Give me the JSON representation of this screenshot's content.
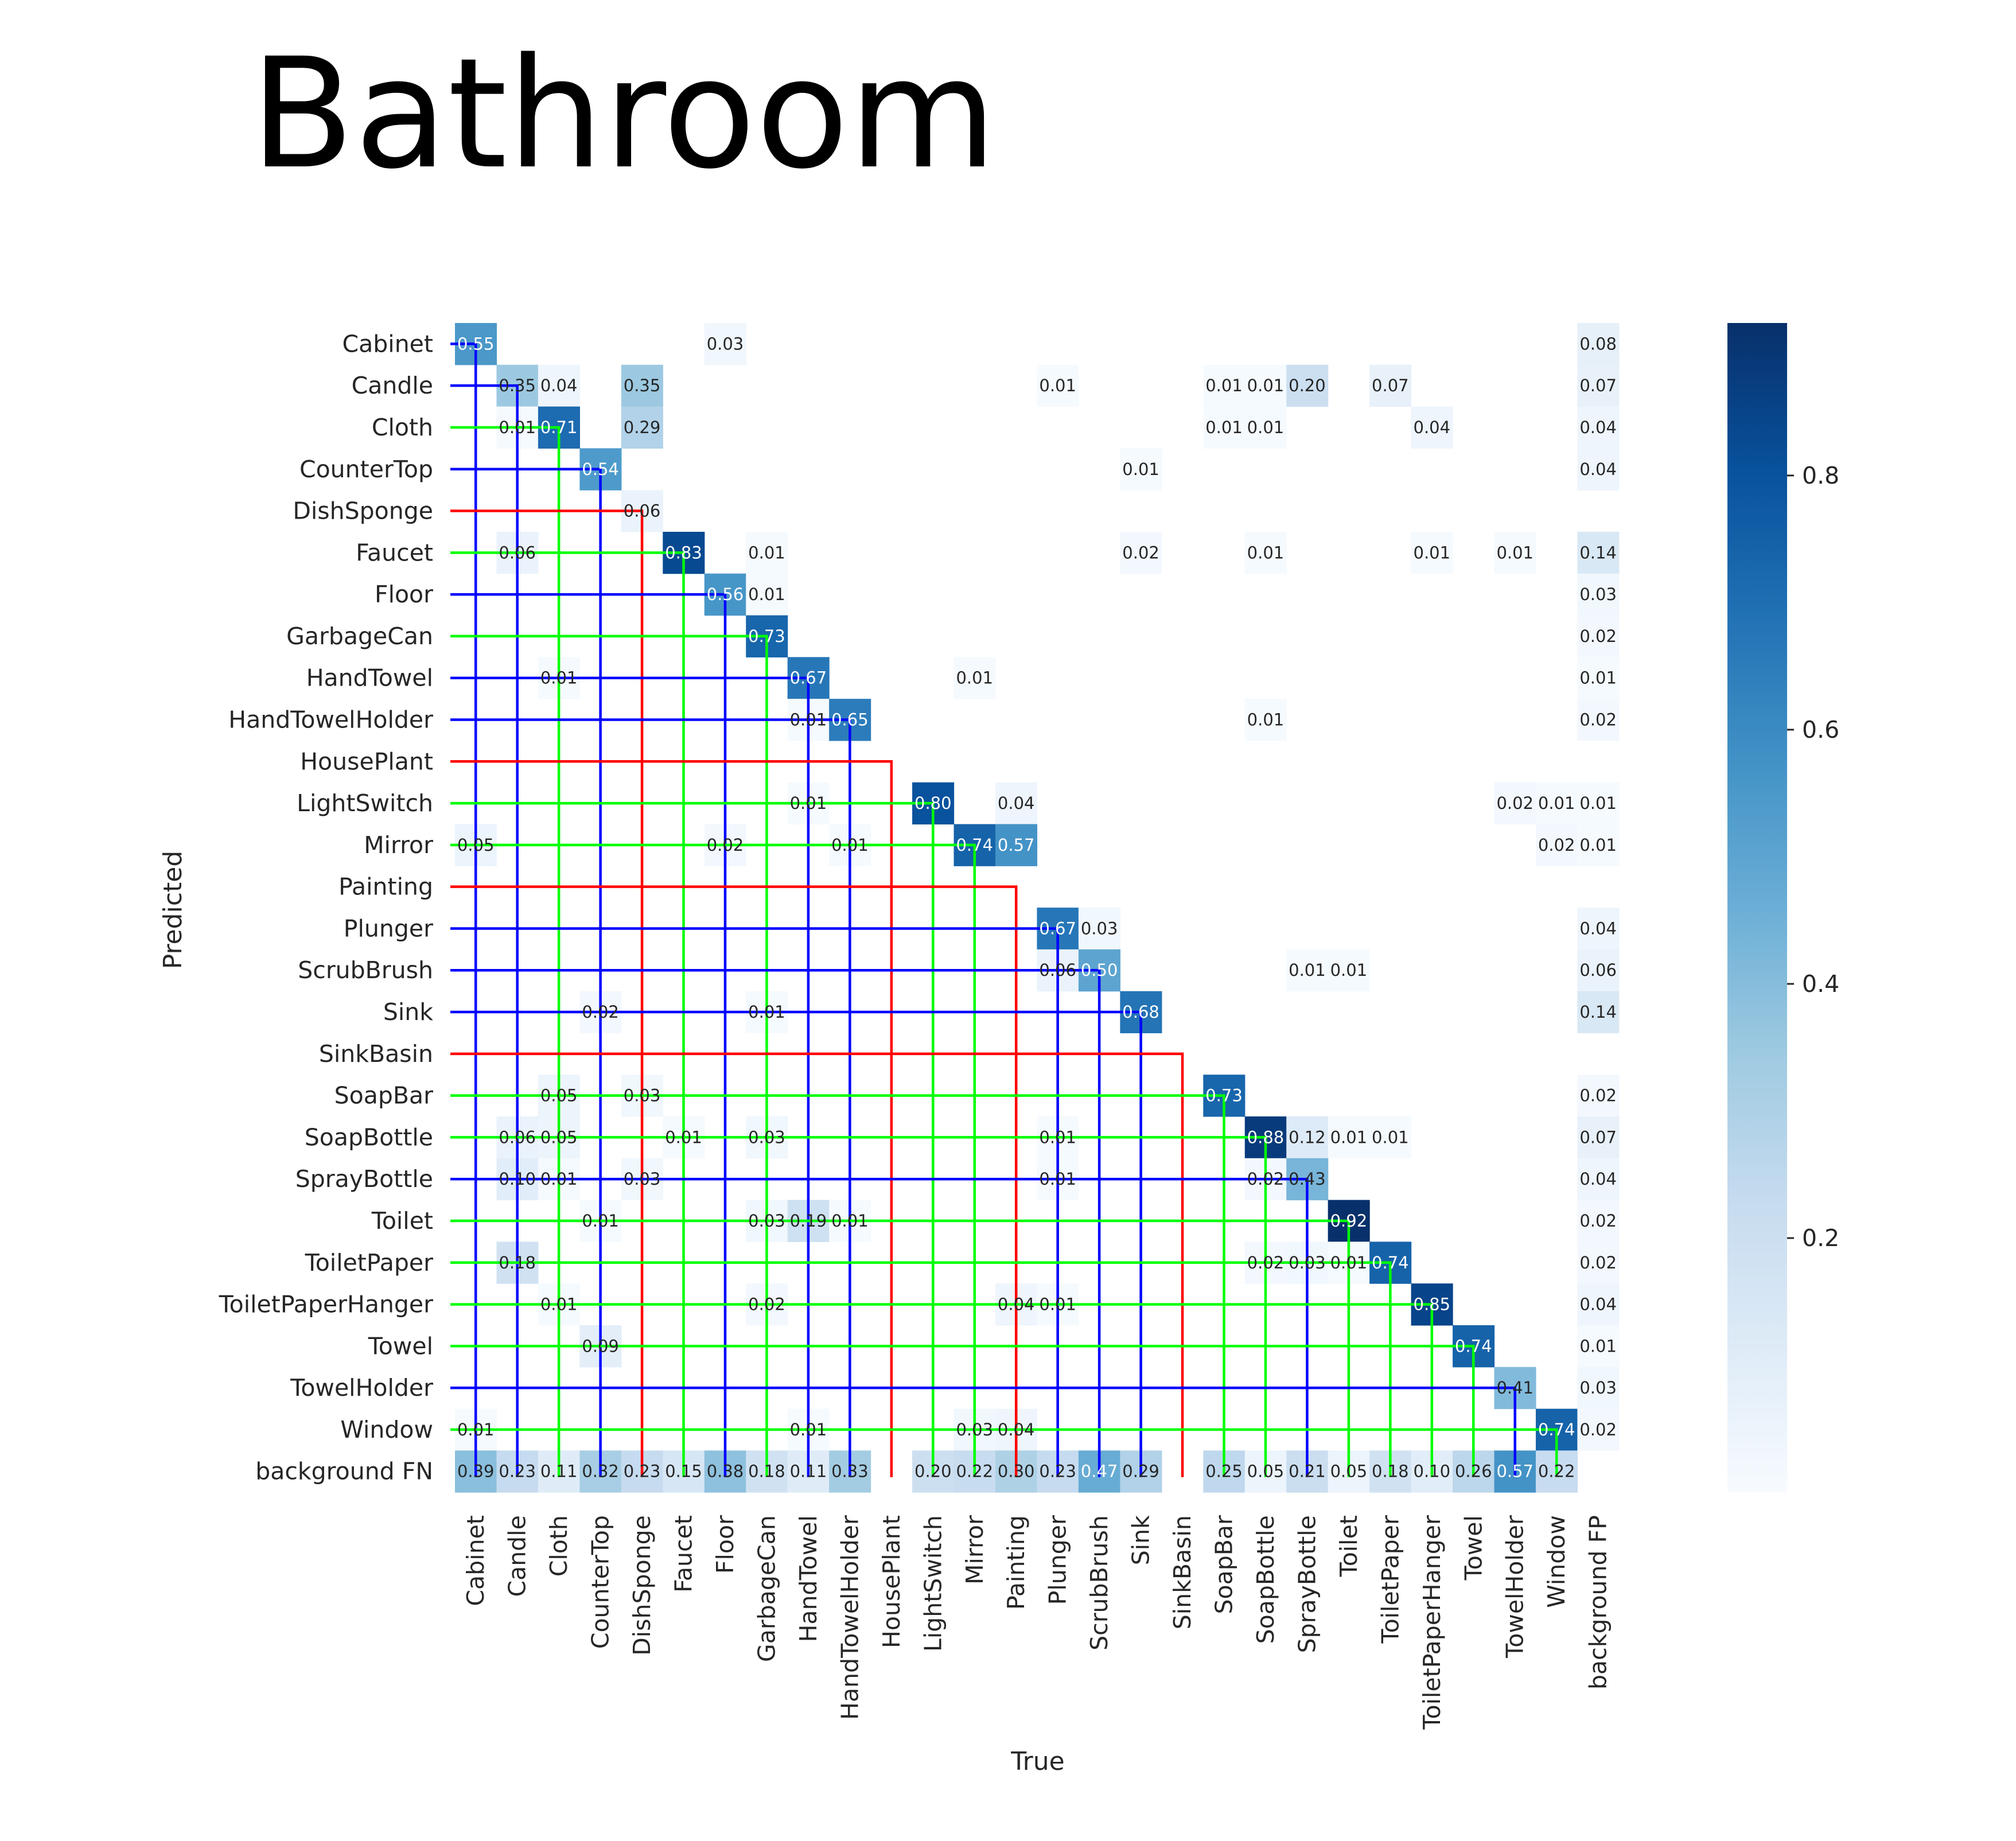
{
  "chart_data": {
    "type": "heatmap",
    "title": "Bathroom",
    "xlabel": "True",
    "ylabel": "Predicted",
    "colormap": "Blues",
    "value_range": [
      0.0,
      0.92
    ],
    "colorbar_ticks": [
      "0.2",
      "0.4",
      "0.6",
      "0.8"
    ],
    "colorbar_values": [
      0.2,
      0.4,
      0.6,
      0.8
    ],
    "row_labels": [
      "Cabinet",
      "Candle",
      "Cloth",
      "CounterTop",
      "DishSponge",
      "Faucet",
      "Floor",
      "GarbageCan",
      "HandTowel",
      "HandTowelHolder",
      "HousePlant",
      "LightSwitch",
      "Mirror",
      "Painting",
      "Plunger",
      "ScrubBrush",
      "Sink",
      "SinkBasin",
      "SoapBar",
      "SoapBottle",
      "SprayBottle",
      "Toilet",
      "ToiletPaper",
      "ToiletPaperHanger",
      "Towel",
      "TowelHolder",
      "Window",
      "background FN"
    ],
    "col_labels": [
      "Cabinet",
      "Candle",
      "Cloth",
      "CounterTop",
      "DishSponge",
      "Faucet",
      "Floor",
      "GarbageCan",
      "HandTowel",
      "HandTowelHolder",
      "HousePlant",
      "LightSwitch",
      "Mirror",
      "Painting",
      "Plunger",
      "ScrubBrush",
      "Sink",
      "SinkBasin",
      "SoapBar",
      "SoapBottle",
      "SprayBottle",
      "Toilet",
      "ToiletPaper",
      "ToiletPaperHanger",
      "Towel",
      "TowelHolder",
      "Window",
      "background FP"
    ],
    "cells": [
      {
        "row": 0,
        "col": 0,
        "value": 0.55,
        "label": "0.55"
      },
      {
        "row": 0,
        "col": 6,
        "value": 0.03,
        "label": "0.03"
      },
      {
        "row": 0,
        "col": 27,
        "value": 0.08,
        "label": "0.08"
      },
      {
        "row": 1,
        "col": 1,
        "value": 0.35,
        "label": "0.35"
      },
      {
        "row": 1,
        "col": 2,
        "value": 0.04,
        "label": "0.04"
      },
      {
        "row": 1,
        "col": 4,
        "value": 0.35,
        "label": "0.35"
      },
      {
        "row": 1,
        "col": 14,
        "value": 0.01,
        "label": "0.01"
      },
      {
        "row": 1,
        "col": 18,
        "value": 0.01,
        "label": "0.01"
      },
      {
        "row": 1,
        "col": 19,
        "value": 0.01,
        "label": "0.01"
      },
      {
        "row": 1,
        "col": 20,
        "value": 0.2,
        "label": "0.20"
      },
      {
        "row": 1,
        "col": 22,
        "value": 0.07,
        "label": "0.07"
      },
      {
        "row": 1,
        "col": 27,
        "value": 0.07,
        "label": "0.07"
      },
      {
        "row": 2,
        "col": 1,
        "value": 0.01,
        "label": "0.01"
      },
      {
        "row": 2,
        "col": 2,
        "value": 0.71,
        "label": "0.71"
      },
      {
        "row": 2,
        "col": 4,
        "value": 0.29,
        "label": "0.29"
      },
      {
        "row": 2,
        "col": 18,
        "value": 0.01,
        "label": "0.01"
      },
      {
        "row": 2,
        "col": 19,
        "value": 0.01,
        "label": "0.01"
      },
      {
        "row": 2,
        "col": 23,
        "value": 0.04,
        "label": "0.04"
      },
      {
        "row": 2,
        "col": 27,
        "value": 0.04,
        "label": "0.04"
      },
      {
        "row": 3,
        "col": 3,
        "value": 0.54,
        "label": "0.54"
      },
      {
        "row": 3,
        "col": 16,
        "value": 0.01,
        "label": "0.01"
      },
      {
        "row": 3,
        "col": 27,
        "value": 0.04,
        "label": "0.04"
      },
      {
        "row": 4,
        "col": 4,
        "value": 0.06,
        "label": "0.06"
      },
      {
        "row": 5,
        "col": 1,
        "value": 0.06,
        "label": "0.06"
      },
      {
        "row": 5,
        "col": 5,
        "value": 0.83,
        "label": "0.83"
      },
      {
        "row": 5,
        "col": 7,
        "value": 0.01,
        "label": "0.01"
      },
      {
        "row": 5,
        "col": 16,
        "value": 0.02,
        "label": "0.02"
      },
      {
        "row": 5,
        "col": 19,
        "value": 0.01,
        "label": "0.01"
      },
      {
        "row": 5,
        "col": 23,
        "value": 0.01,
        "label": "0.01"
      },
      {
        "row": 5,
        "col": 25,
        "value": 0.01,
        "label": "0.01"
      },
      {
        "row": 5,
        "col": 27,
        "value": 0.14,
        "label": "0.14"
      },
      {
        "row": 6,
        "col": 6,
        "value": 0.56,
        "label": "0.56"
      },
      {
        "row": 6,
        "col": 7,
        "value": 0.01,
        "label": "0.01"
      },
      {
        "row": 6,
        "col": 27,
        "value": 0.03,
        "label": "0.03"
      },
      {
        "row": 7,
        "col": 7,
        "value": 0.73,
        "label": "0.73"
      },
      {
        "row": 7,
        "col": 27,
        "value": 0.02,
        "label": "0.02"
      },
      {
        "row": 8,
        "col": 2,
        "value": 0.01,
        "label": "0.01"
      },
      {
        "row": 8,
        "col": 8,
        "value": 0.67,
        "label": "0.67"
      },
      {
        "row": 8,
        "col": 12,
        "value": 0.01,
        "label": "0.01"
      },
      {
        "row": 8,
        "col": 27,
        "value": 0.01,
        "label": "0.01"
      },
      {
        "row": 9,
        "col": 8,
        "value": 0.01,
        "label": "0.01"
      },
      {
        "row": 9,
        "col": 9,
        "value": 0.65,
        "label": "0.65"
      },
      {
        "row": 9,
        "col": 19,
        "value": 0.01,
        "label": "0.01"
      },
      {
        "row": 9,
        "col": 27,
        "value": 0.02,
        "label": "0.02"
      },
      {
        "row": 11,
        "col": 8,
        "value": 0.01,
        "label": "0.01"
      },
      {
        "row": 11,
        "col": 11,
        "value": 0.8,
        "label": "0.80"
      },
      {
        "row": 11,
        "col": 13,
        "value": 0.04,
        "label": "0.04"
      },
      {
        "row": 11,
        "col": 25,
        "value": 0.02,
        "label": "0.02"
      },
      {
        "row": 11,
        "col": 26,
        "value": 0.01,
        "label": "0.01"
      },
      {
        "row": 11,
        "col": 27,
        "value": 0.01,
        "label": "0.01"
      },
      {
        "row": 12,
        "col": 0,
        "value": 0.05,
        "label": "0.05"
      },
      {
        "row": 12,
        "col": 6,
        "value": 0.02,
        "label": "0.02"
      },
      {
        "row": 12,
        "col": 9,
        "value": 0.01,
        "label": "0.01"
      },
      {
        "row": 12,
        "col": 12,
        "value": 0.74,
        "label": "0.74"
      },
      {
        "row": 12,
        "col": 13,
        "value": 0.57,
        "label": "0.57"
      },
      {
        "row": 12,
        "col": 26,
        "value": 0.02,
        "label": "0.02"
      },
      {
        "row": 12,
        "col": 27,
        "value": 0.01,
        "label": "0.01"
      },
      {
        "row": 14,
        "col": 14,
        "value": 0.67,
        "label": "0.67"
      },
      {
        "row": 14,
        "col": 15,
        "value": 0.03,
        "label": "0.03"
      },
      {
        "row": 14,
        "col": 27,
        "value": 0.04,
        "label": "0.04"
      },
      {
        "row": 15,
        "col": 14,
        "value": 0.06,
        "label": "0.06"
      },
      {
        "row": 15,
        "col": 15,
        "value": 0.5,
        "label": "0.50"
      },
      {
        "row": 15,
        "col": 20,
        "value": 0.01,
        "label": "0.01"
      },
      {
        "row": 15,
        "col": 21,
        "value": 0.01,
        "label": "0.01"
      },
      {
        "row": 15,
        "col": 27,
        "value": 0.06,
        "label": "0.06"
      },
      {
        "row": 16,
        "col": 3,
        "value": 0.02,
        "label": "0.02"
      },
      {
        "row": 16,
        "col": 7,
        "value": 0.01,
        "label": "0.01"
      },
      {
        "row": 16,
        "col": 16,
        "value": 0.68,
        "label": "0.68"
      },
      {
        "row": 16,
        "col": 27,
        "value": 0.14,
        "label": "0.14"
      },
      {
        "row": 18,
        "col": 2,
        "value": 0.05,
        "label": "0.05"
      },
      {
        "row": 18,
        "col": 4,
        "value": 0.03,
        "label": "0.03"
      },
      {
        "row": 18,
        "col": 18,
        "value": 0.73,
        "label": "0.73"
      },
      {
        "row": 18,
        "col": 27,
        "value": 0.02,
        "label": "0.02"
      },
      {
        "row": 19,
        "col": 1,
        "value": 0.06,
        "label": "0.06"
      },
      {
        "row": 19,
        "col": 2,
        "value": 0.05,
        "label": "0.05"
      },
      {
        "row": 19,
        "col": 5,
        "value": 0.01,
        "label": "0.01"
      },
      {
        "row": 19,
        "col": 7,
        "value": 0.03,
        "label": "0.03"
      },
      {
        "row": 19,
        "col": 14,
        "value": 0.01,
        "label": "0.01"
      },
      {
        "row": 19,
        "col": 19,
        "value": 0.88,
        "label": "0.88"
      },
      {
        "row": 19,
        "col": 20,
        "value": 0.12,
        "label": "0.12"
      },
      {
        "row": 19,
        "col": 21,
        "value": 0.01,
        "label": "0.01"
      },
      {
        "row": 19,
        "col": 22,
        "value": 0.01,
        "label": "0.01"
      },
      {
        "row": 19,
        "col": 27,
        "value": 0.07,
        "label": "0.07"
      },
      {
        "row": 20,
        "col": 1,
        "value": 0.1,
        "label": "0.10"
      },
      {
        "row": 20,
        "col": 2,
        "value": 0.01,
        "label": "0.01"
      },
      {
        "row": 20,
        "col": 4,
        "value": 0.03,
        "label": "0.03"
      },
      {
        "row": 20,
        "col": 14,
        "value": 0.01,
        "label": "0.01"
      },
      {
        "row": 20,
        "col": 19,
        "value": 0.02,
        "label": "0.02"
      },
      {
        "row": 20,
        "col": 20,
        "value": 0.43,
        "label": "0.43"
      },
      {
        "row": 20,
        "col": 27,
        "value": 0.04,
        "label": "0.04"
      },
      {
        "row": 21,
        "col": 3,
        "value": 0.01,
        "label": "0.01"
      },
      {
        "row": 21,
        "col": 7,
        "value": 0.03,
        "label": "0.03"
      },
      {
        "row": 21,
        "col": 8,
        "value": 0.19,
        "label": "0.19"
      },
      {
        "row": 21,
        "col": 9,
        "value": 0.01,
        "label": "0.01"
      },
      {
        "row": 21,
        "col": 21,
        "value": 0.92,
        "label": "0.92"
      },
      {
        "row": 21,
        "col": 27,
        "value": 0.02,
        "label": "0.02"
      },
      {
        "row": 22,
        "col": 1,
        "value": 0.18,
        "label": "0.18"
      },
      {
        "row": 22,
        "col": 19,
        "value": 0.02,
        "label": "0.02"
      },
      {
        "row": 22,
        "col": 20,
        "value": 0.03,
        "label": "0.03"
      },
      {
        "row": 22,
        "col": 21,
        "value": 0.01,
        "label": "0.01"
      },
      {
        "row": 22,
        "col": 22,
        "value": 0.74,
        "label": "0.74"
      },
      {
        "row": 22,
        "col": 27,
        "value": 0.02,
        "label": "0.02"
      },
      {
        "row": 23,
        "col": 2,
        "value": 0.01,
        "label": "0.01"
      },
      {
        "row": 23,
        "col": 7,
        "value": 0.02,
        "label": "0.02"
      },
      {
        "row": 23,
        "col": 13,
        "value": 0.04,
        "label": "0.04"
      },
      {
        "row": 23,
        "col": 14,
        "value": 0.01,
        "label": "0.01"
      },
      {
        "row": 23,
        "col": 23,
        "value": 0.85,
        "label": "0.85"
      },
      {
        "row": 23,
        "col": 27,
        "value": 0.04,
        "label": "0.04"
      },
      {
        "row": 24,
        "col": 3,
        "value": 0.09,
        "label": "0.09"
      },
      {
        "row": 24,
        "col": 24,
        "value": 0.74,
        "label": "0.74"
      },
      {
        "row": 24,
        "col": 27,
        "value": 0.01,
        "label": "0.01"
      },
      {
        "row": 25,
        "col": 25,
        "value": 0.41,
        "label": "0.41"
      },
      {
        "row": 25,
        "col": 27,
        "value": 0.03,
        "label": "0.03"
      },
      {
        "row": 26,
        "col": 0,
        "value": 0.01,
        "label": "0.01"
      },
      {
        "row": 26,
        "col": 8,
        "value": 0.01,
        "label": "0.01"
      },
      {
        "row": 26,
        "col": 12,
        "value": 0.03,
        "label": "0.03"
      },
      {
        "row": 26,
        "col": 13,
        "value": 0.04,
        "label": "0.04"
      },
      {
        "row": 26,
        "col": 26,
        "value": 0.74,
        "label": "0.74"
      },
      {
        "row": 26,
        "col": 27,
        "value": 0.02,
        "label": "0.02"
      },
      {
        "row": 27,
        "col": 0,
        "value": 0.39,
        "label": "0.39"
      },
      {
        "row": 27,
        "col": 1,
        "value": 0.23,
        "label": "0.23"
      },
      {
        "row": 27,
        "col": 2,
        "value": 0.11,
        "label": "0.11"
      },
      {
        "row": 27,
        "col": 3,
        "value": 0.32,
        "label": "0.32"
      },
      {
        "row": 27,
        "col": 4,
        "value": 0.23,
        "label": "0.23"
      },
      {
        "row": 27,
        "col": 5,
        "value": 0.15,
        "label": "0.15"
      },
      {
        "row": 27,
        "col": 6,
        "value": 0.38,
        "label": "0.38"
      },
      {
        "row": 27,
        "col": 7,
        "value": 0.18,
        "label": "0.18"
      },
      {
        "row": 27,
        "col": 8,
        "value": 0.11,
        "label": "0.11"
      },
      {
        "row": 27,
        "col": 9,
        "value": 0.33,
        "label": "0.33"
      },
      {
        "row": 27,
        "col": 11,
        "value": 0.2,
        "label": "0.20"
      },
      {
        "row": 27,
        "col": 12,
        "value": 0.22,
        "label": "0.22"
      },
      {
        "row": 27,
        "col": 13,
        "value": 0.3,
        "label": "0.30"
      },
      {
        "row": 27,
        "col": 14,
        "value": 0.23,
        "label": "0.23"
      },
      {
        "row": 27,
        "col": 15,
        "value": 0.47,
        "label": "0.47"
      },
      {
        "row": 27,
        "col": 16,
        "value": 0.29,
        "label": "0.29"
      },
      {
        "row": 27,
        "col": 18,
        "value": 0.25,
        "label": "0.25"
      },
      {
        "row": 27,
        "col": 19,
        "value": 0.05,
        "label": "0.05"
      },
      {
        "row": 27,
        "col": 20,
        "value": 0.21,
        "label": "0.21"
      },
      {
        "row": 27,
        "col": 21,
        "value": 0.05,
        "label": "0.05"
      },
      {
        "row": 27,
        "col": 22,
        "value": 0.18,
        "label": "0.18"
      },
      {
        "row": 27,
        "col": 23,
        "value": 0.1,
        "label": "0.10"
      },
      {
        "row": 27,
        "col": 24,
        "value": 0.26,
        "label": "0.26"
      },
      {
        "row": 27,
        "col": 25,
        "value": 0.57,
        "label": "0.57"
      },
      {
        "row": 27,
        "col": 26,
        "value": 0.22,
        "label": "0.22"
      }
    ],
    "overlay_lines": [
      {
        "row": 0,
        "col": 0,
        "color": "#0000ff"
      },
      {
        "row": 1,
        "col": 1,
        "color": "#0000ff"
      },
      {
        "row": 2,
        "col": 2,
        "color": "#00ff00"
      },
      {
        "row": 3,
        "col": 3,
        "color": "#0000ff"
      },
      {
        "row": 4,
        "col": 4,
        "color": "#ff0000"
      },
      {
        "row": 5,
        "col": 5,
        "color": "#00ff00"
      },
      {
        "row": 6,
        "col": 6,
        "color": "#0000ff"
      },
      {
        "row": 7,
        "col": 7,
        "color": "#00ff00"
      },
      {
        "row": 8,
        "col": 8,
        "color": "#0000ff"
      },
      {
        "row": 9,
        "col": 9,
        "color": "#0000ff"
      },
      {
        "row": 10,
        "col": 10,
        "color": "#ff0000"
      },
      {
        "row": 11,
        "col": 11,
        "color": "#00ff00"
      },
      {
        "row": 12,
        "col": 12,
        "color": "#00ff00"
      },
      {
        "row": 13,
        "col": 13,
        "color": "#ff0000"
      },
      {
        "row": 14,
        "col": 14,
        "color": "#0000ff"
      },
      {
        "row": 15,
        "col": 15,
        "color": "#0000ff"
      },
      {
        "row": 16,
        "col": 16,
        "color": "#0000ff"
      },
      {
        "row": 17,
        "col": 17,
        "color": "#ff0000"
      },
      {
        "row": 18,
        "col": 18,
        "color": "#00ff00"
      },
      {
        "row": 19,
        "col": 19,
        "color": "#00ff00"
      },
      {
        "row": 20,
        "col": 20,
        "color": "#0000ff"
      },
      {
        "row": 21,
        "col": 21,
        "color": "#00ff00"
      },
      {
        "row": 22,
        "col": 22,
        "color": "#00ff00"
      },
      {
        "row": 23,
        "col": 23,
        "color": "#00ff00"
      },
      {
        "row": 24,
        "col": 24,
        "color": "#00ff00"
      },
      {
        "row": 25,
        "col": 25,
        "color": "#0000ff"
      },
      {
        "row": 26,
        "col": 26,
        "color": "#00ff00"
      }
    ]
  }
}
